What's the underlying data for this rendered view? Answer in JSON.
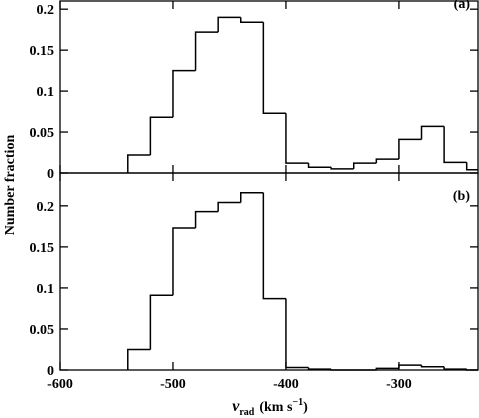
{
  "chart_data": [
    {
      "type": "histogram",
      "annotation": "(a)",
      "y_label": "Number fraction",
      "bins": [
        -540,
        -520,
        -500,
        -480,
        -460,
        -440,
        -420,
        -400,
        -380,
        -360,
        -340,
        -320,
        -300,
        -280,
        -260,
        -240,
        -220
      ],
      "values": [
        0.022,
        0.068,
        0.125,
        0.172,
        0.19,
        0.184,
        0.073,
        0.012,
        0.007,
        0.005,
        0.012,
        0.017,
        0.041,
        0.057,
        0.013,
        0.004
      ],
      "xlim": [
        -600,
        -230
      ],
      "ylim": [
        0,
        0.21
      ],
      "yticks": [
        0,
        0.05,
        0.1,
        0.15,
        0.2
      ],
      "xticks": [
        -600,
        -500,
        -400,
        -300
      ],
      "color": "#000000"
    },
    {
      "type": "histogram",
      "annotation": "(b)",
      "x_label": {
        "symbol": "v",
        "subscript": "rad",
        "unit": "(km s",
        "superscript": "−1",
        "close": ")"
      },
      "bins": [
        -540,
        -520,
        -500,
        -480,
        -460,
        -440,
        -420,
        -400,
        -380,
        -360,
        -340,
        -320,
        -300,
        -280,
        -260,
        -240,
        -220
      ],
      "values": [
        0.025,
        0.091,
        0.173,
        0.193,
        0.204,
        0.216,
        0.087,
        0.003,
        0.001,
        0,
        0,
        0.002,
        0.006,
        0.004,
        0.001,
        0
      ],
      "xlim": [
        -600,
        -230
      ],
      "ylim": [
        0,
        0.24
      ],
      "yticks": [
        0,
        0.05,
        0.1,
        0.15,
        0.2
      ],
      "xticks": [
        -600,
        -500,
        -400,
        -300
      ],
      "color": "#000000"
    }
  ]
}
